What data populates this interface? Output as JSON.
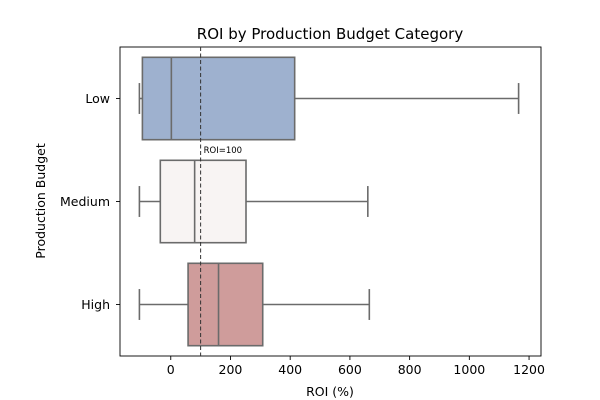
{
  "chart_data": {
    "type": "boxplot",
    "orientation": "horizontal",
    "title": "ROI by Production Budget Category",
    "xlabel": "ROI (%)",
    "ylabel": "Production Budget",
    "xlim": [
      -170,
      1240
    ],
    "xticks": [
      0,
      200,
      400,
      600,
      800,
      1000,
      1200
    ],
    "categories": [
      "Low",
      "Medium",
      "High"
    ],
    "boxes": [
      {
        "category": "Low",
        "whisker_low": -105,
        "q1": -95,
        "median": 2,
        "q3": 415,
        "whisker_high": 1165,
        "color": "#9eb1cf"
      },
      {
        "category": "Medium",
        "whisker_low": -105,
        "q1": -35,
        "median": 80,
        "q3": 252,
        "whisker_high": 660,
        "color": "#f8f4f3"
      },
      {
        "category": "High",
        "whisker_low": -105,
        "q1": 58,
        "median": 160,
        "q3": 308,
        "whisker_high": 665,
        "color": "#cf9c9b"
      }
    ],
    "reference_line": {
      "x": 100,
      "label": "ROI=100",
      "style": "dashed"
    },
    "grid": false,
    "line_color": "#6b6b6b"
  }
}
